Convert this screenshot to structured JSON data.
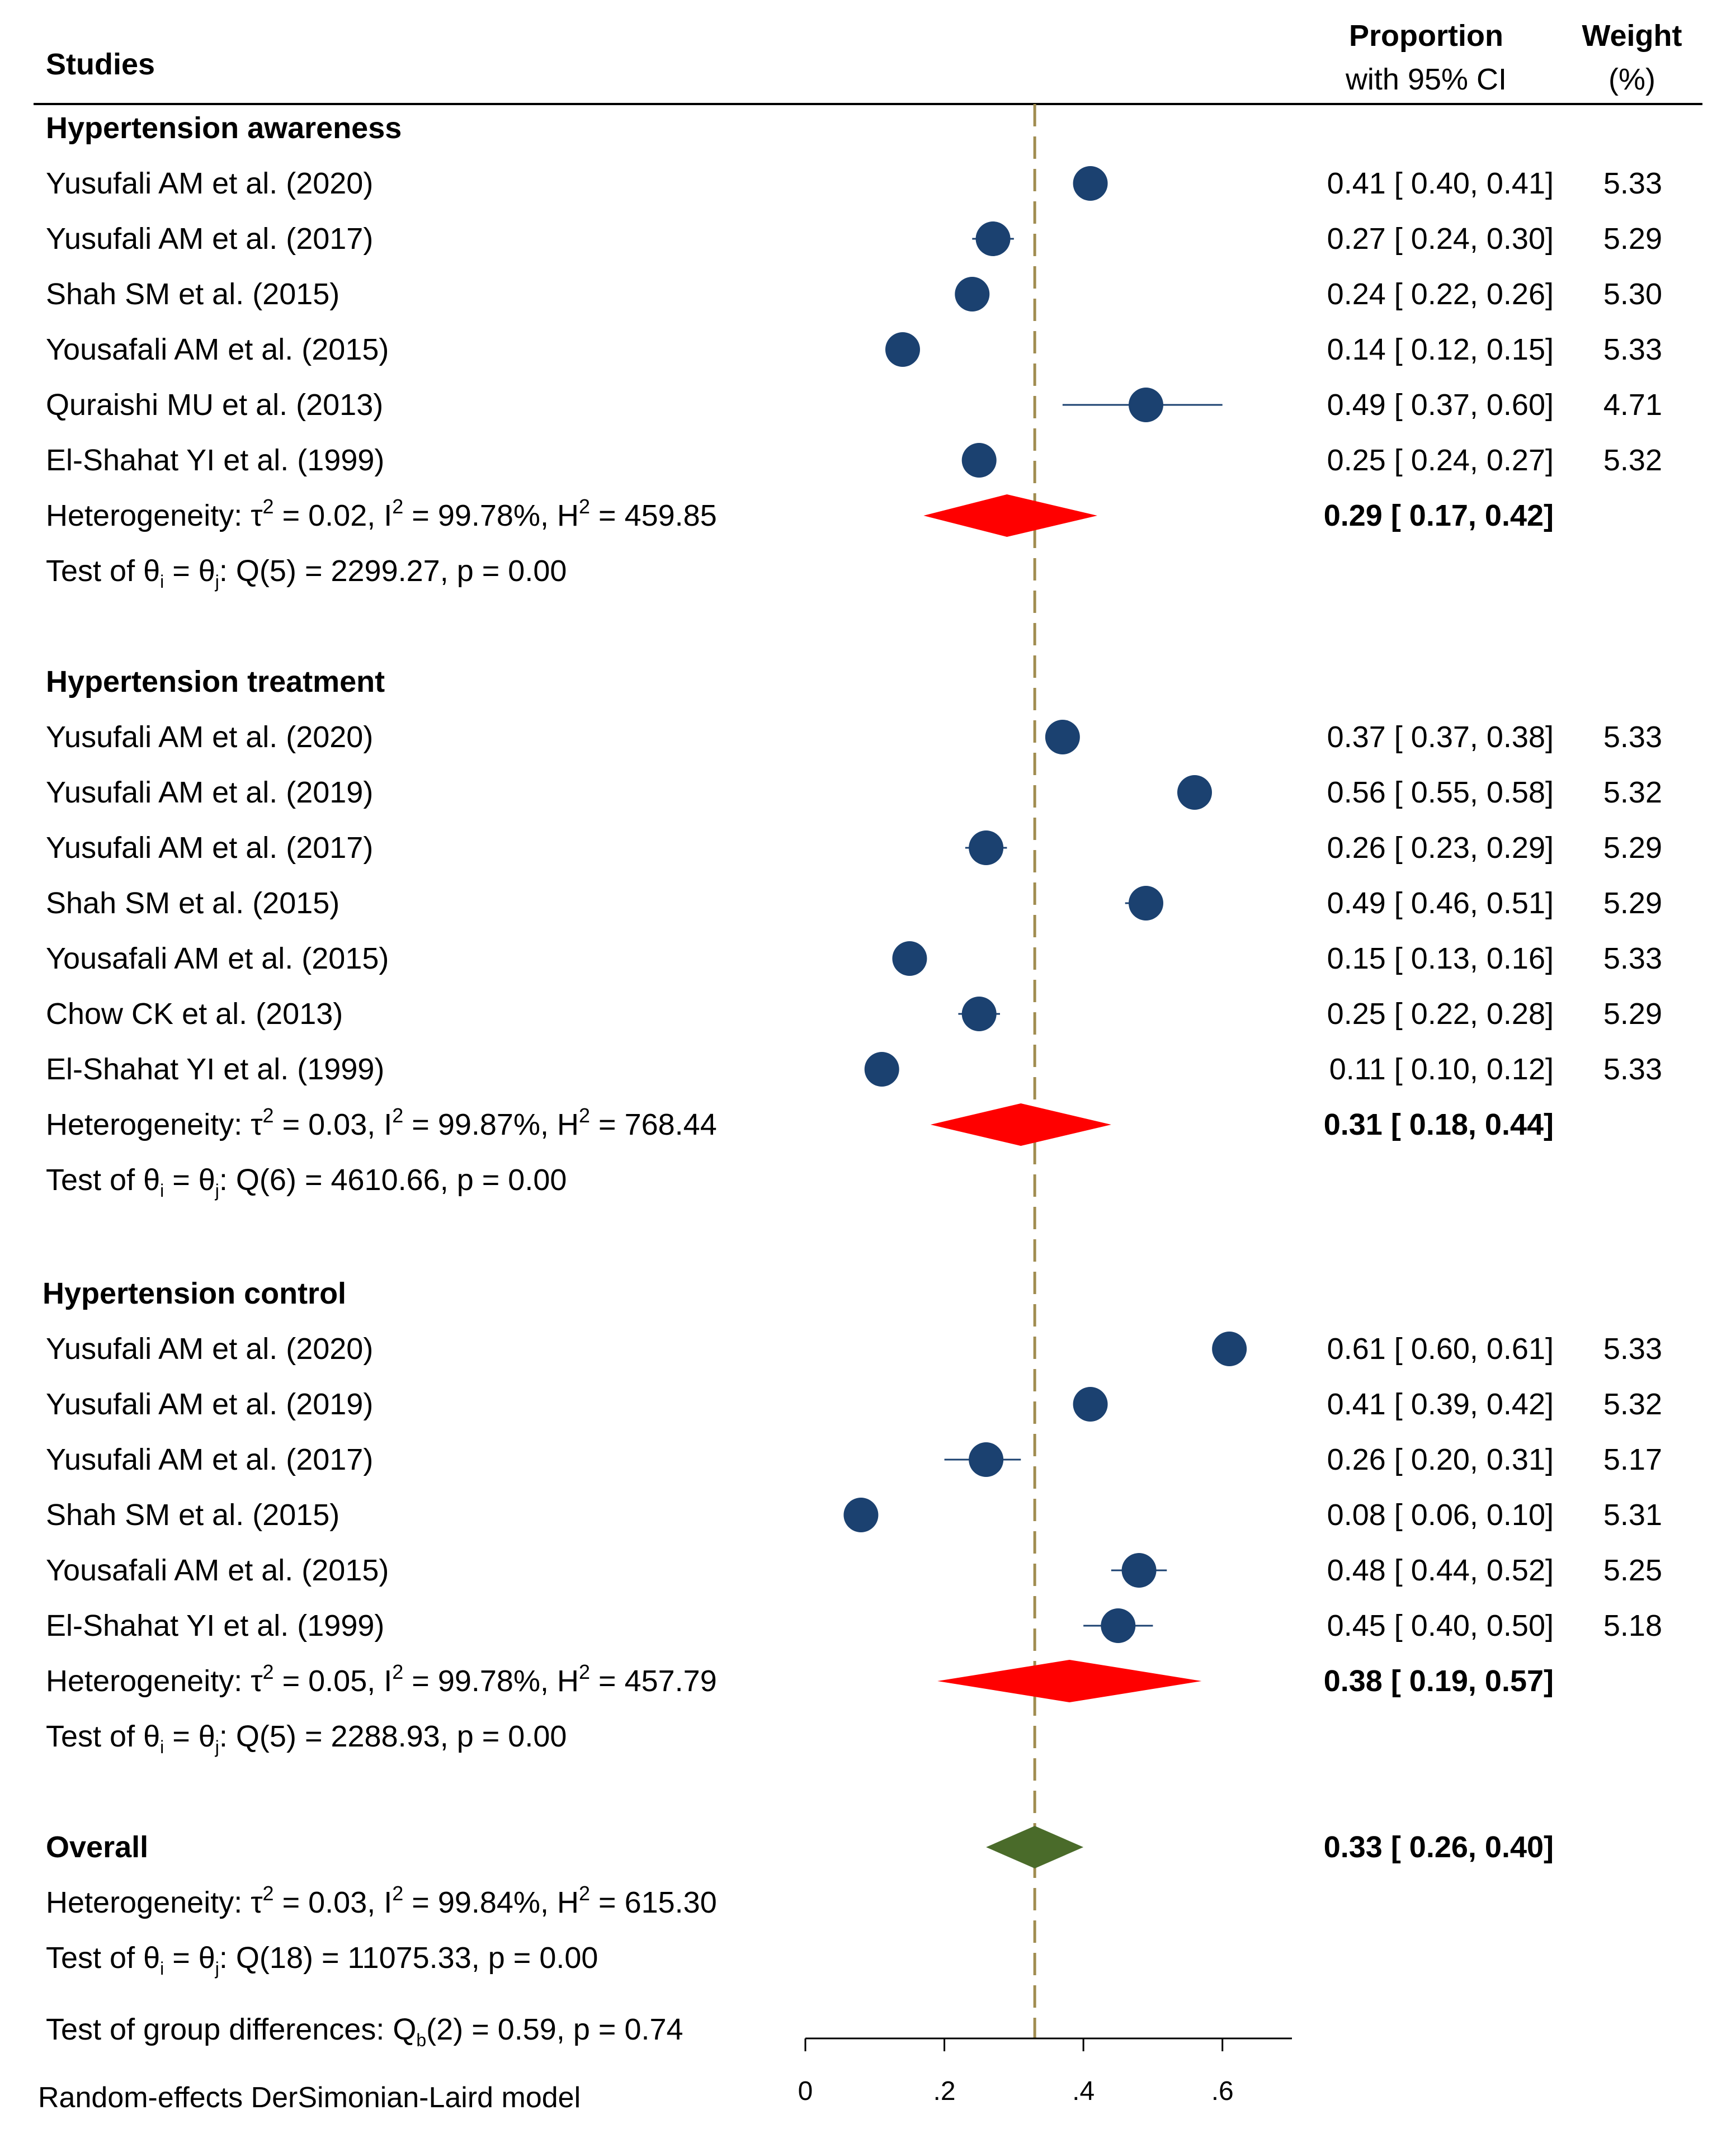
{
  "chart_data": {
    "type": "forest",
    "model_note": "Random-effects DerSimonian-Laird model",
    "columns": {
      "studies": "Studies",
      "estimate_line1": "Proportion",
      "estimate_line2": "with 95% CI",
      "weight_line1": "Weight",
      "weight_line2": "(%)"
    },
    "x_axis": {
      "range": [
        0,
        0.7
      ],
      "ticks": [
        0,
        0.2,
        0.4,
        0.6
      ],
      "tick_labels": [
        "0",
        ".2",
        ".4",
        ".6"
      ],
      "reference_value": 0.33
    },
    "groups": [
      {
        "name": "Hypertension awareness",
        "studies": [
          {
            "label": "Yusufali AM et al. (2020)",
            "est": 0.41,
            "lo": 0.4,
            "hi": 0.41,
            "ci_text": "0.41 [ 0.40,  0.41]",
            "weight": "5.33"
          },
          {
            "label": "Yusufali AM et al. (2017)",
            "est": 0.27,
            "lo": 0.24,
            "hi": 0.3,
            "ci_text": "0.27 [ 0.24,  0.30]",
            "weight": "5.29"
          },
          {
            "label": "Shah SM et al. (2015)",
            "est": 0.24,
            "lo": 0.22,
            "hi": 0.26,
            "ci_text": "0.24 [ 0.22,  0.26]",
            "weight": "5.30"
          },
          {
            "label": "Yousafali AM et al. (2015)",
            "est": 0.14,
            "lo": 0.12,
            "hi": 0.15,
            "ci_text": "0.14 [ 0.12,  0.15]",
            "weight": "5.33"
          },
          {
            "label": "Quraishi MU et al. (2013)",
            "est": 0.49,
            "lo": 0.37,
            "hi": 0.6,
            "ci_text": "0.49 [ 0.37,  0.60]",
            "weight": "4.71"
          },
          {
            "label": "El-Shahat YI et al. (1999)",
            "est": 0.25,
            "lo": 0.24,
            "hi": 0.27,
            "ci_text": "0.25 [ 0.24,  0.27]",
            "weight": "5.32"
          }
        ],
        "pooled": {
          "est": 0.29,
          "lo": 0.17,
          "hi": 0.42,
          "ci_text": "0.29 [ 0.17,  0.42]"
        },
        "heterogeneity": {
          "tau2": "0.02",
          "i2": "99.78%",
          "h2": "459.85"
        },
        "test": {
          "df": "5",
          "q": "2299.27",
          "p": "0.00"
        }
      },
      {
        "name": "Hypertension treatment",
        "studies": [
          {
            "label": "Yusufali AM et al. (2020)",
            "est": 0.37,
            "lo": 0.37,
            "hi": 0.38,
            "ci_text": "0.37 [ 0.37,  0.38]",
            "weight": "5.33"
          },
          {
            "label": "Yusufali AM et al. (2019)",
            "est": 0.56,
            "lo": 0.55,
            "hi": 0.58,
            "ci_text": "0.56 [ 0.55,  0.58]",
            "weight": "5.32"
          },
          {
            "label": "Yusufali AM et al. (2017)",
            "est": 0.26,
            "lo": 0.23,
            "hi": 0.29,
            "ci_text": "0.26 [ 0.23,  0.29]",
            "weight": "5.29"
          },
          {
            "label": "Shah SM et al. (2015)",
            "est": 0.49,
            "lo": 0.46,
            "hi": 0.51,
            "ci_text": "0.49 [ 0.46,  0.51]",
            "weight": "5.29"
          },
          {
            "label": "Yousafali AM et al. (2015)",
            "est": 0.15,
            "lo": 0.13,
            "hi": 0.16,
            "ci_text": "0.15 [ 0.13,  0.16]",
            "weight": "5.33"
          },
          {
            "label": "Chow CK et al. (2013)",
            "est": 0.25,
            "lo": 0.22,
            "hi": 0.28,
            "ci_text": "0.25 [ 0.22,  0.28]",
            "weight": "5.29"
          },
          {
            "label": "El-Shahat YI et al. (1999)",
            "est": 0.11,
            "lo": 0.1,
            "hi": 0.12,
            "ci_text": "0.11 [ 0.10,  0.12]",
            "weight": "5.33"
          }
        ],
        "pooled": {
          "est": 0.31,
          "lo": 0.18,
          "hi": 0.44,
          "ci_text": "0.31 [ 0.18,  0.44]"
        },
        "heterogeneity": {
          "tau2": "0.03",
          "i2": "99.87%",
          "h2": "768.44"
        },
        "test": {
          "df": "6",
          "q": "4610.66",
          "p": "0.00"
        }
      },
      {
        "name": "Hypertension control",
        "studies": [
          {
            "label": "Yusufali AM et al. (2020)",
            "est": 0.61,
            "lo": 0.6,
            "hi": 0.61,
            "ci_text": "0.61 [ 0.60,  0.61]",
            "weight": "5.33"
          },
          {
            "label": "Yusufali AM et al. (2019)",
            "est": 0.41,
            "lo": 0.39,
            "hi": 0.42,
            "ci_text": "0.41 [ 0.39,  0.42]",
            "weight": "5.32"
          },
          {
            "label": "Yusufali AM et al. (2017)",
            "est": 0.26,
            "lo": 0.2,
            "hi": 0.31,
            "ci_text": "0.26 [ 0.20,  0.31]",
            "weight": "5.17"
          },
          {
            "label": "Shah SM et al. (2015)",
            "est": 0.08,
            "lo": 0.06,
            "hi": 0.1,
            "ci_text": "0.08 [ 0.06,  0.10]",
            "weight": "5.31"
          },
          {
            "label": "Yousafali AM et al. (2015)",
            "est": 0.48,
            "lo": 0.44,
            "hi": 0.52,
            "ci_text": "0.48 [ 0.44,  0.52]",
            "weight": "5.25"
          },
          {
            "label": "El-Shahat YI et al. (1999)",
            "est": 0.45,
            "lo": 0.4,
            "hi": 0.5,
            "ci_text": "0.45 [ 0.40,  0.50]",
            "weight": "5.18"
          }
        ],
        "pooled": {
          "est": 0.38,
          "lo": 0.19,
          "hi": 0.57,
          "ci_text": "0.38 [ 0.19,  0.57]"
        },
        "heterogeneity": {
          "tau2": "0.05",
          "i2": "99.78%",
          "h2": "457.79"
        },
        "test": {
          "df": "5",
          "q": "2288.93",
          "p": "0.00"
        }
      }
    ],
    "overall": {
      "label": "Overall",
      "est": 0.33,
      "lo": 0.26,
      "hi": 0.4,
      "ci_text": "0.33 [ 0.26,  0.40]",
      "heterogeneity": {
        "tau2": "0.03",
        "i2": "99.84%",
        "h2": "615.30"
      },
      "test": {
        "df": "18",
        "q": "11075.33",
        "p": "0.00"
      }
    },
    "group_difference_test": {
      "df": "2",
      "q": "0.59",
      "p": "0.74"
    },
    "colors": {
      "marker": "#1b4170",
      "ci_line": "#1b4170",
      "subgroup_diamond": "#ff0000",
      "overall_diamond": "#4a6b2a",
      "reference_line": "#a08c50",
      "text": "#000000"
    }
  }
}
